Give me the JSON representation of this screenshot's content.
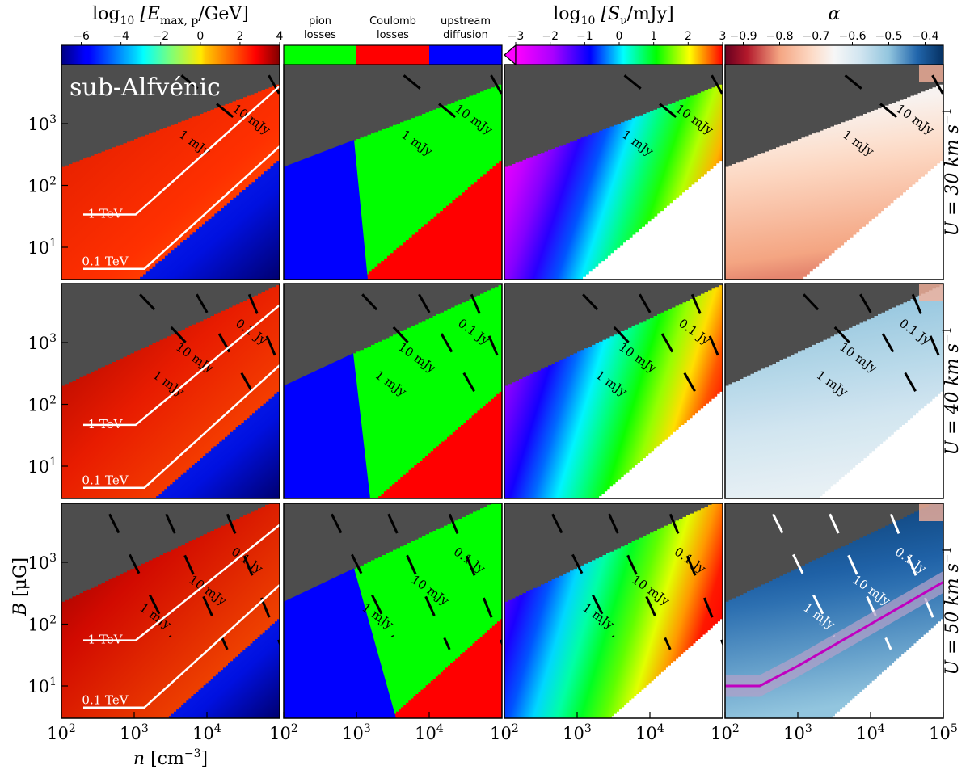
{
  "chart_data": {
    "type": "heatmap",
    "x": {
      "label_prefix": "n",
      "label_unit": "[cm",
      "label_exp": "−3",
      "label_suffix": "]",
      "scale": "log",
      "range": [
        100,
        100000
      ],
      "tick_labels": [
        {
          "mant": "10",
          "exp": "2",
          "value": 100
        },
        {
          "mant": "10",
          "exp": "3",
          "value": 1000
        },
        {
          "mant": "10",
          "exp": "4",
          "value": 10000
        },
        {
          "mant": "10",
          "exp": "5",
          "value": 100000
        }
      ]
    },
    "y": {
      "label_prefix": "B",
      "label_unit": "[μG]",
      "scale": "log",
      "range": [
        3,
        9000
      ],
      "tick_labels": [
        {
          "mant": "10",
          "exp": "1",
          "value": 10
        },
        {
          "mant": "10",
          "exp": "2",
          "value": 100
        },
        {
          "mant": "10",
          "exp": "3",
          "value": 1000
        }
      ]
    },
    "columns": [
      {
        "title_prefix": "log",
        "title_sub": "10",
        "title_body": "[E",
        "title_body_sub": "max, p",
        "title_end": "/GeV]",
        "colormap": "jet",
        "range": [
          -7,
          4
        ],
        "tick_labels": [
          "−6",
          "−4",
          "−2",
          "0",
          "2",
          "4"
        ],
        "tick_values": [
          -6,
          -4,
          -2,
          0,
          2,
          4
        ]
      },
      {
        "title_prefix": "",
        "colormap": "categorical",
        "categories": [
          {
            "line1": "pion",
            "line2": "losses",
            "color": "#00ff00"
          },
          {
            "line1": "Coulomb",
            "line2": "losses",
            "color": "#ff0000"
          },
          {
            "line1": "upstream",
            "line2": "diffusion",
            "color": "#0000ff"
          }
        ]
      },
      {
        "title_prefix": "log",
        "title_sub": "10",
        "title_body": "[S",
        "title_body_sub": "ν",
        "title_end": "/mJy]",
        "colormap": "gist_rainbow",
        "range": [
          -3,
          3
        ],
        "tick_labels": [
          "−3",
          "−2",
          "−1",
          "0",
          "1",
          "2",
          "3"
        ],
        "tick_values": [
          -3,
          -2,
          -1,
          0,
          1,
          2,
          3
        ]
      },
      {
        "title_prefix": "α",
        "colormap": "RdBu",
        "range": [
          -0.95,
          -0.35
        ],
        "tick_labels": [
          "−0.9",
          "−0.8",
          "−0.7",
          "−0.6",
          "−0.5",
          "−0.4"
        ],
        "tick_values": [
          -0.9,
          -0.8,
          -0.7,
          -0.6,
          -0.5,
          -0.4
        ]
      }
    ],
    "rows": [
      {
        "label_prefix": "U = 30 km s",
        "label_exp": "−1",
        "shock_speed": 30
      },
      {
        "label_prefix": "U = 40 km s",
        "label_exp": "−1",
        "shock_speed": 40
      },
      {
        "label_prefix": "U = 50 km s",
        "label_exp": "−1",
        "shock_speed": 50
      }
    ],
    "annotation": "sub-Alfvénic",
    "energy_contours": [
      "1 TeV",
      "0.1 TeV"
    ],
    "flux_contours": {
      "row0": [
        "10 mJy",
        "1 mJy"
      ],
      "row1": [
        "0.1 Jy",
        "10 mJy",
        "1 mJy"
      ],
      "row2": [
        "0.1 Jy",
        "10 mJy",
        "1 mJy"
      ]
    },
    "band_curve": {
      "description": "magenta line with shaded band in bottom-right panel",
      "points_nB": [
        [
          100,
          10
        ],
        [
          300,
          10
        ],
        [
          1000,
          21
        ],
        [
          10000,
          100
        ],
        [
          100000,
          480
        ]
      ],
      "band_factor": 1.5,
      "color": "#c000c0"
    },
    "colors": {
      "masked": "#4d4d4d",
      "empty": "#ffffff",
      "white_contour": "#ffffff",
      "black_contour": "#000000"
    }
  }
}
